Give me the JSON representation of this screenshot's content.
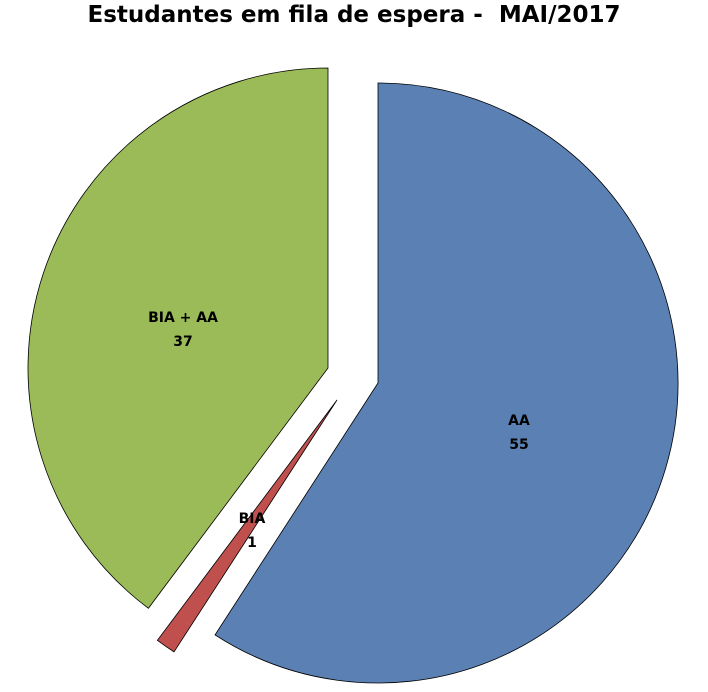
{
  "chart_data": {
    "type": "pie",
    "title": "Estudantes em fila de espera -  MAI/2017",
    "slices": [
      {
        "label": "AA",
        "value": 55,
        "color": "#5b80b3",
        "exploded": true
      },
      {
        "label": "BIA",
        "value": 1,
        "color": "#c0504d",
        "exploded": true
      },
      {
        "label": "BIA + AA",
        "value": 37,
        "color": "#9bbb59",
        "exploded": true
      }
    ],
    "start_angle": "top",
    "direction": "clockwise",
    "legend": "none",
    "data_labels": "label and value"
  }
}
